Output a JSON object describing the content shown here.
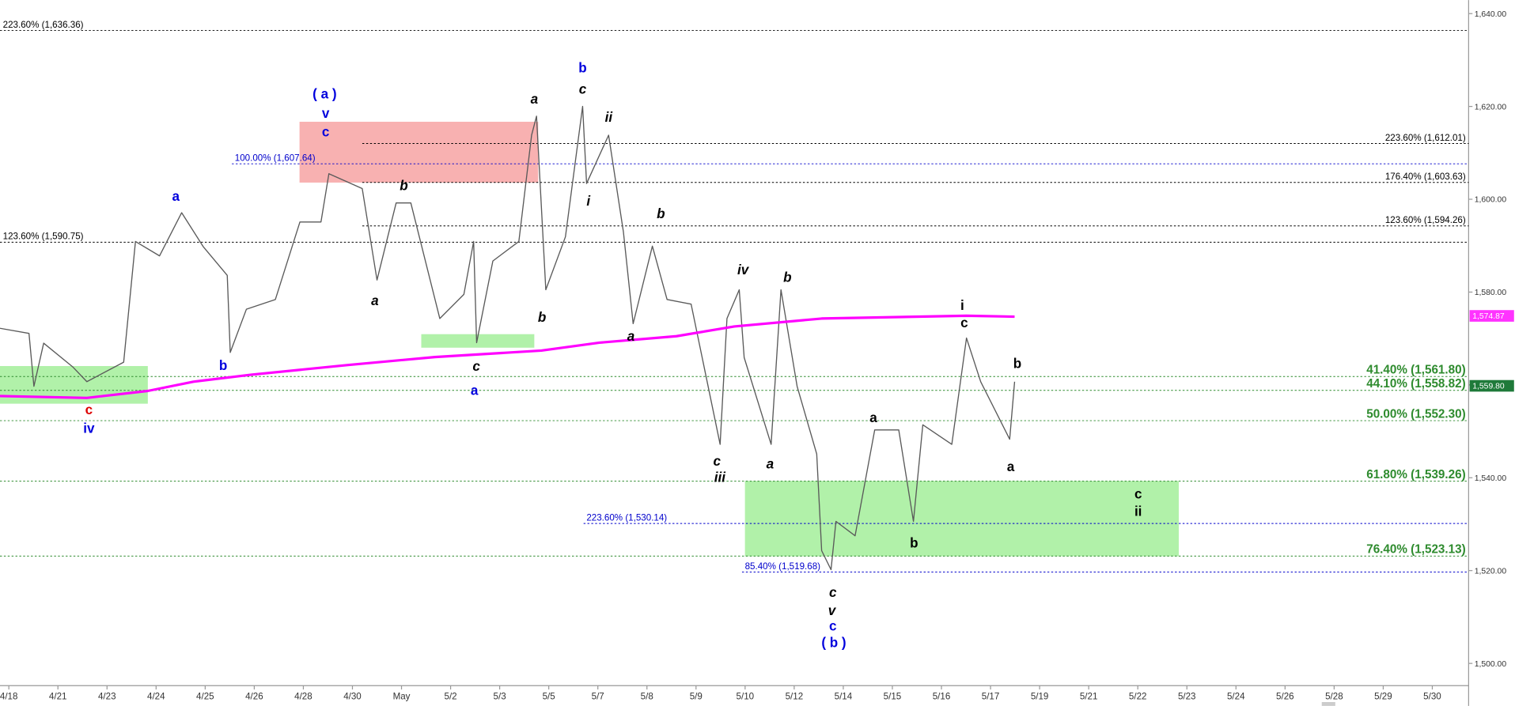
{
  "chart_data": {
    "type": "line",
    "categories": [
      "4/18",
      "4/21",
      "4/23",
      "4/24",
      "4/25",
      "4/26",
      "4/28",
      "4/30",
      "May",
      "5/2",
      "5/3",
      "5/5",
      "5/7",
      "5/8",
      "5/9",
      "5/10",
      "5/12",
      "5/14",
      "5/15",
      "5/16",
      "5/17",
      "5/19",
      "5/21",
      "5/22",
      "5/23",
      "5/24",
      "5/26",
      "5/28",
      "5/29",
      "5/30"
    ],
    "xlim": [
      -0.18,
      29.74
    ],
    "ylim": [
      1495.21,
      1642.91
    ],
    "yticks": [
      {
        "value": 1640,
        "label": "1,640.00"
      },
      {
        "value": 1620,
        "label": "1,620.00"
      },
      {
        "value": 1600,
        "label": "1,600.00"
      },
      {
        "value": 1580,
        "label": "1,580.00"
      },
      {
        "value": 1560,
        "label": "1,560.00"
      },
      {
        "value": 1540,
        "label": "1,540.00"
      },
      {
        "value": 1520,
        "label": "1,520.00"
      },
      {
        "value": 1500,
        "label": "1,500.00"
      }
    ],
    "grid": false,
    "series": [
      {
        "color": "#5a5a5a",
        "x": [
          -0.18,
          0.41,
          0.51,
          0.71,
          1.3,
          1.59,
          2.34,
          2.58,
          3.07,
          3.52,
          3.96,
          4.45,
          4.51,
          4.84,
          5.43,
          5.93,
          6.36,
          6.52,
          7.2,
          7.5,
          7.89,
          8.19,
          8.78,
          9.27,
          9.47,
          9.53,
          9.86,
          10.39,
          10.65,
          10.75,
          10.94,
          11.34,
          11.69,
          11.77,
          12.22,
          12.52,
          12.72,
          13.11,
          13.41,
          13.9,
          14.49,
          14.63,
          14.88,
          14.98,
          15.53,
          15.73,
          16.06,
          16.46,
          16.56,
          16.75,
          16.85,
          17.24,
          17.64,
          18.13,
          18.43,
          18.62,
          19.21,
          19.51,
          19.8,
          20.39,
          20.49
        ],
        "values": [
          1572.2,
          1571.1,
          1559.7,
          1569.0,
          1563.9,
          1560.7,
          1564.9,
          1590.9,
          1587.8,
          1597.1,
          1589.8,
          1583.6,
          1567.0,
          1576.3,
          1578.4,
          1595.1,
          1595.1,
          1605.5,
          1602.3,
          1582.6,
          1599.2,
          1599.2,
          1574.3,
          1579.5,
          1590.9,
          1569.1,
          1586.7,
          1590.9,
          1613.8,
          1617.9,
          1580.5,
          1591.9,
          1620.0,
          1603.4,
          1613.8,
          1593.0,
          1573.2,
          1589.9,
          1578.4,
          1577.4,
          1547.2,
          1574.3,
          1580.5,
          1565.9,
          1547.2,
          1580.5,
          1559.7,
          1545.1,
          1524.3,
          1520.2,
          1530.6,
          1527.5,
          1550.3,
          1550.3,
          1530.6,
          1551.4,
          1547.2,
          1570.1,
          1560.7,
          1548.3,
          1560.7
        ]
      },
      {
        "color": "#ff00ff",
        "x": [
          -0.18,
          1.59,
          2.83,
          3.76,
          4.94,
          6.91,
          8.68,
          10.85,
          12.03,
          13.6,
          14.78,
          16.56,
          19.51,
          20.49
        ],
        "values": [
          1557.6,
          1557.2,
          1558.7,
          1560.7,
          1562.2,
          1564.3,
          1566.0,
          1567.4,
          1569.1,
          1570.5,
          1572.6,
          1574.3,
          1574.9,
          1574.7
        ]
      }
    ],
    "levels": [
      {
        "label": "223.60% (1,636.36)",
        "value": 1636.36,
        "color": "#000000",
        "side": "left"
      },
      {
        "label": "123.60% (1,590.75)",
        "value": 1590.75,
        "color": "#000000",
        "side": "left"
      },
      {
        "label": "100.00% (1,607.64)",
        "value": 1607.64,
        "color": "#0000cc",
        "side": "left"
      },
      {
        "label": "223.60% (1,612.01)",
        "value": 1612.01,
        "color": "#000000",
        "side": "right"
      },
      {
        "label": "176.40% (1,603.63)",
        "value": 1603.63,
        "color": "#000000",
        "side": "right"
      },
      {
        "label": "123.60% (1,594.26)",
        "value": 1594.26,
        "color": "#000000",
        "side": "right"
      },
      {
        "label": "41.40% (1,561.80)",
        "value": 1561.8,
        "color": "#2e8b2e",
        "side": "right"
      },
      {
        "label": "44.10% (1,558.82)",
        "value": 1558.82,
        "color": "#2e8b2e",
        "side": "right"
      },
      {
        "label": "50.00% (1,552.30)",
        "value": 1552.3,
        "color": "#2e8b2e",
        "side": "right"
      },
      {
        "label": "61.80% (1,539.26)",
        "value": 1539.26,
        "color": "#2e8b2e",
        "side": "right"
      },
      {
        "label": "76.40% (1,523.13)",
        "value": 1523.13,
        "color": "#2e8b2e",
        "side": "right"
      },
      {
        "label": "223.60% (1,530.14)",
        "value": 1530.14,
        "color": "#0000cc",
        "side": "left"
      },
      {
        "label": "85.40% (1,519.68)",
        "value": 1519.68,
        "color": "#0000cc",
        "side": "left"
      }
    ],
    "badges": [
      {
        "value": 1574.87,
        "label": "1,574.87",
        "color": "#ff33ff"
      },
      {
        "value": 1559.8,
        "label": "1,559.80",
        "color": "#1f7a3a"
      }
    ],
    "annotations": [
      {
        "text": "( a )",
        "color": "#0000dd"
      },
      {
        "text": "v",
        "color": "#0000dd"
      },
      {
        "text": "c",
        "color": "#0000dd"
      },
      {
        "text": "a",
        "color": "#0000dd"
      },
      {
        "text": "b",
        "color": "#0000dd"
      },
      {
        "text": "c",
        "color": "#dd0000"
      },
      {
        "text": "iv",
        "color": "#0000dd"
      },
      {
        "text": "b",
        "color": "#000000",
        "style": "italic"
      },
      {
        "text": "a",
        "color": "#000000",
        "style": "italic"
      },
      {
        "text": "c",
        "color": "#000000",
        "style": "italic"
      },
      {
        "text": "a",
        "color": "#0000dd"
      },
      {
        "text": "a",
        "color": "#000000",
        "style": "italic"
      },
      {
        "text": "b",
        "color": "#000000",
        "style": "italic"
      },
      {
        "text": "b",
        "color": "#0000dd"
      },
      {
        "text": "c",
        "color": "#000000",
        "style": "italic"
      },
      {
        "text": "i",
        "color": "#000000",
        "style": "italic"
      },
      {
        "text": "ii",
        "color": "#000000",
        "style": "italic"
      },
      {
        "text": "b",
        "color": "#000000",
        "style": "italic"
      },
      {
        "text": "a",
        "color": "#000000",
        "style": "italic"
      },
      {
        "text": "iv",
        "color": "#000000",
        "style": "italic"
      },
      {
        "text": "b",
        "color": "#000000",
        "style": "italic"
      },
      {
        "text": "c",
        "color": "#000000",
        "style": "italic"
      },
      {
        "text": "iii",
        "color": "#000000",
        "style": "italic"
      },
      {
        "text": "a",
        "color": "#000000",
        "style": "italic"
      },
      {
        "text": "c",
        "color": "#000000",
        "style": "italic"
      },
      {
        "text": "v",
        "color": "#000000",
        "style": "italic"
      },
      {
        "text": "c",
        "color": "#0000dd"
      },
      {
        "text": "( b )",
        "color": "#0000dd"
      },
      {
        "text": "a",
        "color": "#000000"
      },
      {
        "text": "b",
        "color": "#000000"
      },
      {
        "text": "i",
        "color": "#000000"
      },
      {
        "text": "c",
        "color": "#000000"
      },
      {
        "text": "b",
        "color": "#000000"
      },
      {
        "text": "a",
        "color": "#000000"
      },
      {
        "text": "c",
        "color": "#000000"
      },
      {
        "text": "ii",
        "color": "#000000"
      }
    ]
  }
}
